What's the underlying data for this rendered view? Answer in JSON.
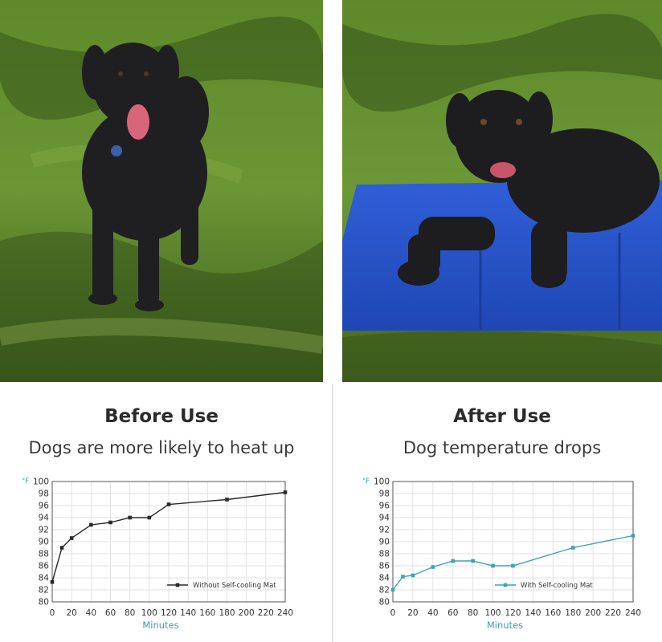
{
  "panels": [
    {
      "heading": "Before Use",
      "subheading": "Dogs are more likely to heat up",
      "photo_icon": "dog-standing-on-grass"
    },
    {
      "heading": "After Use",
      "subheading": "Dog temperature drops",
      "photo_icon": "dog-lying-on-blue-cooling-mat"
    }
  ],
  "colors": {
    "before_line": "#2a2a2a",
    "after_line": "#3ba3b6",
    "axis_label": "#3aa0b8",
    "grid": "#e2e2e2"
  },
  "chart_data": [
    {
      "type": "line",
      "title": "",
      "ylabel": "°F",
      "xlabel": "Minutes",
      "xlim": [
        0,
        240
      ],
      "ylim": [
        80,
        100
      ],
      "xticks": [
        0,
        20,
        40,
        60,
        80,
        100,
        120,
        140,
        160,
        180,
        200,
        220,
        240
      ],
      "yticks": [
        80,
        82,
        84,
        86,
        88,
        90,
        92,
        94,
        96,
        98,
        100
      ],
      "grid": true,
      "legend_position": "bottom-right",
      "series": [
        {
          "name": "Without Self-cooling Mat",
          "x": [
            0,
            10,
            20,
            40,
            60,
            80,
            100,
            120,
            180,
            240
          ],
          "y": [
            83.3,
            89,
            90.6,
            92.8,
            93.2,
            94,
            94,
            96.2,
            97,
            98.2
          ]
        }
      ]
    },
    {
      "type": "line",
      "title": "",
      "ylabel": "°F",
      "xlabel": "Minutes",
      "xlim": [
        0,
        240
      ],
      "ylim": [
        80,
        100
      ],
      "xticks": [
        0,
        20,
        40,
        60,
        80,
        100,
        120,
        140,
        160,
        180,
        200,
        220,
        240
      ],
      "yticks": [
        80,
        82,
        84,
        86,
        88,
        90,
        92,
        94,
        96,
        98,
        100
      ],
      "grid": true,
      "legend_position": "bottom-right",
      "series": [
        {
          "name": "With Self-cooling Mat",
          "x": [
            0,
            10,
            20,
            40,
            60,
            80,
            100,
            120,
            180,
            240
          ],
          "y": [
            82,
            84.2,
            84.4,
            85.8,
            86.8,
            86.8,
            86,
            86,
            89,
            91
          ]
        }
      ]
    }
  ]
}
